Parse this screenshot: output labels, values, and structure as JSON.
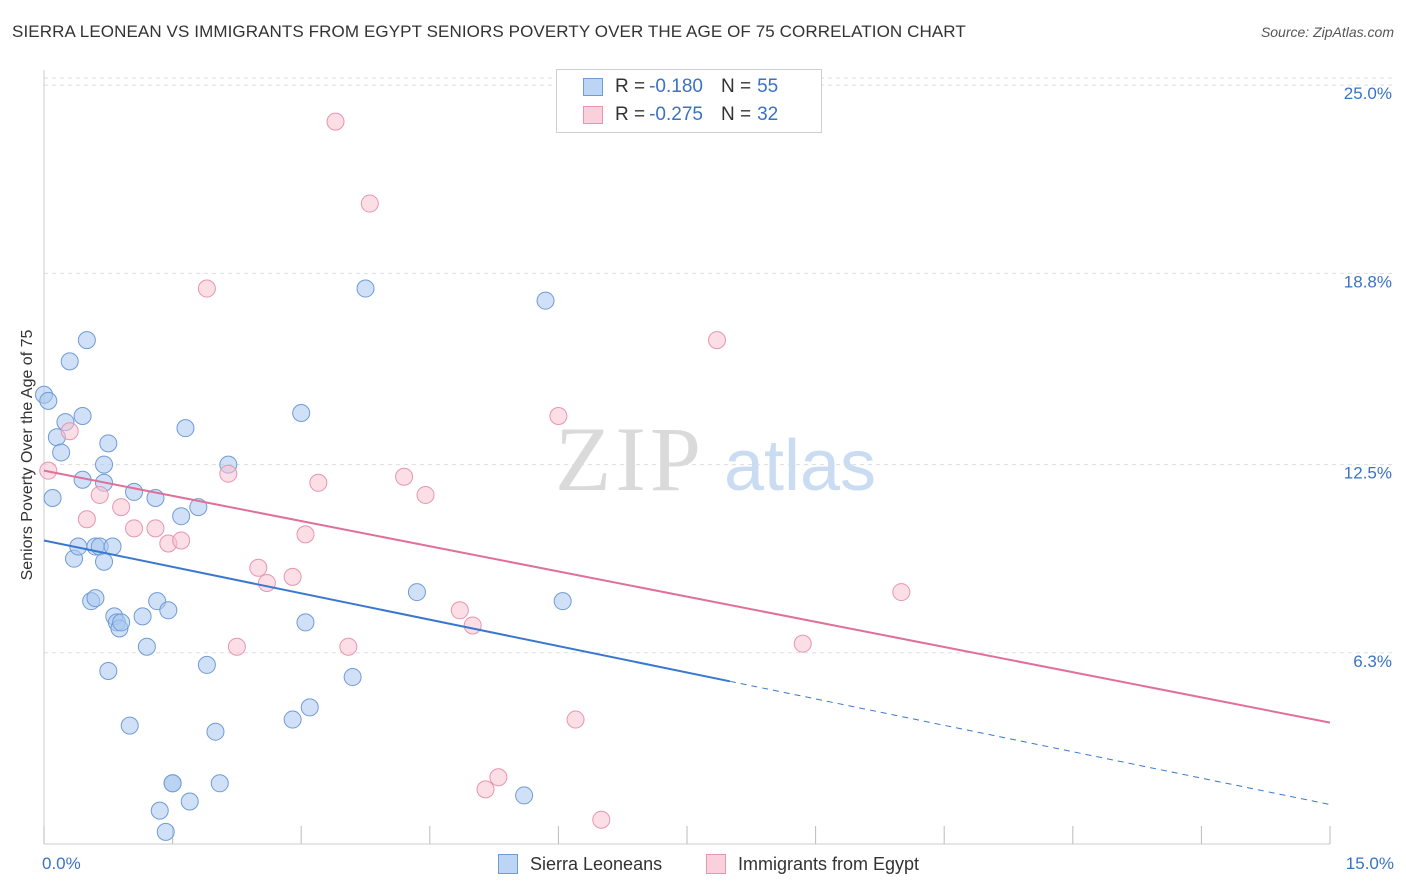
{
  "header": {
    "title": "SIERRA LEONEAN VS IMMIGRANTS FROM EGYPT SENIORS POVERTY OVER THE AGE OF 75 CORRELATION CHART",
    "source": "Source: ZipAtlas.com"
  },
  "legend": {
    "rows": [
      {
        "r_label": "R = ",
        "r_value": "-0.180",
        "n_label": "N = ",
        "n_value": "55"
      },
      {
        "r_label": "R = ",
        "r_value": "-0.275",
        "n_label": "N = ",
        "n_value": "32"
      }
    ]
  },
  "bottom_legend": {
    "series1": "Sierra Leoneans",
    "series2": "Immigrants from Egypt"
  },
  "watermark": {
    "zip": "ZIP",
    "atlas": "atlas"
  },
  "colors": {
    "blue_fill": "#a9c9f0",
    "blue_stroke": "#6f9bd6",
    "blue_line": "#3a78d0",
    "pink_fill": "#f7c3d2",
    "pink_stroke": "#e795b0",
    "pink_line": "#e0709a",
    "tick_blue": "#3a72c4",
    "grid": "#dddddd"
  },
  "chart_data": {
    "type": "scatter",
    "title": "SIERRA LEONEAN VS IMMIGRANTS FROM EGYPT SENIORS POVERTY OVER THE AGE OF 75 CORRELATION CHART",
    "xlabel": "",
    "ylabel": "Seniors Poverty Over the Age of 75",
    "xlim": [
      0,
      15
    ],
    "ylim": [
      0,
      25.5
    ],
    "x_tick_labels": [
      {
        "value": 0,
        "label": "0.0%"
      },
      {
        "value": 15,
        "label": "15.0%"
      }
    ],
    "y_tick_labels": [
      {
        "value": 6.3,
        "label": "6.3%"
      },
      {
        "value": 12.5,
        "label": "12.5%"
      },
      {
        "value": 18.8,
        "label": "18.8%"
      },
      {
        "value": 25.0,
        "label": "25.0%"
      }
    ],
    "series": [
      {
        "name": "Sierra Leoneans",
        "r": -0.18,
        "n": 55,
        "trend": {
          "x0": 0,
          "y0": 10.0,
          "x_solid_end": 8.0,
          "x1": 15,
          "y1": 1.3
        },
        "points": [
          [
            0.0,
            14.8
          ],
          [
            0.05,
            14.6
          ],
          [
            0.1,
            11.4
          ],
          [
            0.15,
            13.4
          ],
          [
            0.2,
            12.9
          ],
          [
            0.25,
            13.9
          ],
          [
            0.3,
            15.9
          ],
          [
            0.35,
            9.4
          ],
          [
            0.4,
            9.8
          ],
          [
            0.45,
            14.1
          ],
          [
            0.45,
            12.0
          ],
          [
            0.5,
            16.6
          ],
          [
            0.55,
            8.0
          ],
          [
            0.6,
            8.1
          ],
          [
            0.6,
            9.8
          ],
          [
            0.65,
            9.8
          ],
          [
            0.7,
            12.5
          ],
          [
            0.75,
            13.2
          ],
          [
            0.7,
            11.9
          ],
          [
            0.7,
            9.3
          ],
          [
            0.75,
            5.7
          ],
          [
            0.8,
            9.8
          ],
          [
            0.82,
            7.5
          ],
          [
            0.85,
            7.3
          ],
          [
            0.88,
            7.1
          ],
          [
            0.9,
            7.3
          ],
          [
            1.0,
            3.9
          ],
          [
            1.05,
            11.6
          ],
          [
            1.15,
            7.5
          ],
          [
            1.2,
            6.5
          ],
          [
            1.3,
            11.4
          ],
          [
            1.32,
            8.0
          ],
          [
            1.35,
            1.1
          ],
          [
            1.42,
            0.4
          ],
          [
            1.45,
            7.7
          ],
          [
            1.5,
            2.0
          ],
          [
            1.5,
            2.0
          ],
          [
            1.6,
            10.8
          ],
          [
            1.65,
            13.7
          ],
          [
            1.7,
            1.4
          ],
          [
            1.8,
            11.1
          ],
          [
            1.9,
            5.9
          ],
          [
            2.0,
            3.7
          ],
          [
            2.05,
            2.0
          ],
          [
            2.15,
            12.5
          ],
          [
            2.9,
            4.1
          ],
          [
            3.0,
            14.2
          ],
          [
            3.05,
            7.3
          ],
          [
            3.1,
            4.5
          ],
          [
            3.6,
            5.5
          ],
          [
            3.75,
            18.3
          ],
          [
            4.35,
            8.3
          ],
          [
            5.6,
            1.6
          ],
          [
            5.85,
            17.9
          ],
          [
            6.05,
            8.0
          ]
        ]
      },
      {
        "name": "Immigrants from Egypt",
        "r": -0.275,
        "n": 32,
        "trend": {
          "x0": 0,
          "y0": 12.3,
          "x1": 15,
          "y1": 4.0
        },
        "points": [
          [
            0.05,
            12.3
          ],
          [
            0.3,
            13.6
          ],
          [
            0.5,
            10.7
          ],
          [
            0.65,
            11.5
          ],
          [
            0.9,
            11.1
          ],
          [
            1.05,
            10.4
          ],
          [
            1.3,
            10.4
          ],
          [
            1.45,
            9.9
          ],
          [
            1.6,
            10.0
          ],
          [
            1.9,
            18.3
          ],
          [
            2.15,
            12.2
          ],
          [
            2.25,
            6.5
          ],
          [
            2.5,
            9.1
          ],
          [
            2.6,
            8.6
          ],
          [
            2.9,
            8.8
          ],
          [
            3.05,
            10.2
          ],
          [
            3.2,
            11.9
          ],
          [
            3.4,
            23.8
          ],
          [
            3.55,
            6.5
          ],
          [
            3.8,
            21.1
          ],
          [
            4.2,
            12.1
          ],
          [
            4.45,
            11.5
          ],
          [
            4.85,
            7.7
          ],
          [
            5.0,
            7.2
          ],
          [
            5.15,
            1.8
          ],
          [
            5.3,
            2.2
          ],
          [
            6.0,
            14.1
          ],
          [
            6.2,
            4.1
          ],
          [
            6.5,
            0.8
          ],
          [
            7.85,
            16.6
          ],
          [
            8.85,
            6.6
          ],
          [
            10.0,
            8.3
          ]
        ]
      }
    ]
  }
}
